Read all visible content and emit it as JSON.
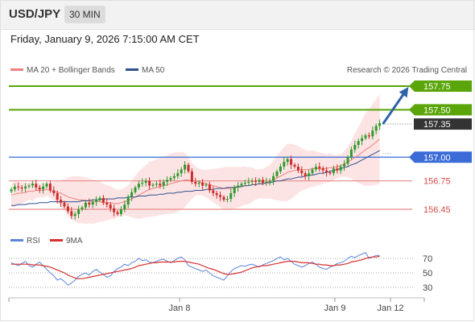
{
  "header": {
    "symbol": "USD/JPY",
    "timeframe": "30 MIN"
  },
  "datetime": "Friday, January 9, 2026 7:15:00 AM CET",
  "legend": {
    "bb_label": "MA 20 + Bollinger Bands",
    "ma50_label": "MA 50",
    "copyright": "Research © 2026 Trading Central"
  },
  "rsi_legend": {
    "rsi_label": "RSI",
    "ma_label": "9MA"
  },
  "colors": {
    "bull": "#2e9a2e",
    "bear": "#cc2b2b",
    "ma20": "#f08080",
    "ma50": "#2c4f8f",
    "band_fill": "#fde4e4",
    "green_level": "#5aa50a",
    "blue_level": "#3a6bd6",
    "red_level": "#e88a8a",
    "arrow": "#2f62a8",
    "rsi": "#5b86d8",
    "rsi_ma": "#d93030"
  },
  "chart_data": {
    "type": "line",
    "title": "USD/JPY",
    "timeframe": "30 MIN",
    "y_range": [
      156.2,
      157.9
    ],
    "x_ticks": [
      "Jan 8",
      "Jan 9",
      "Jan 12"
    ],
    "last_price": 157.35,
    "levels": [
      {
        "value": 157.75,
        "label": "157.75",
        "role": "target",
        "color": "#5aa50a"
      },
      {
        "value": 157.5,
        "label": "157.50",
        "role": "target",
        "color": "#5aa50a"
      },
      {
        "value": 157.35,
        "label": "157.35",
        "role": "last",
        "color": "#333333"
      },
      {
        "value": 157.0,
        "label": "157.00",
        "role": "pivot",
        "color": "#3a6bd6"
      },
      {
        "value": 156.75,
        "label": "156.75",
        "role": "support",
        "color": "#e88a8a"
      },
      {
        "value": 156.45,
        "label": "156.45",
        "role": "support",
        "color": "#e88a8a"
      }
    ],
    "projection": {
      "from": 157.35,
      "to": 157.7
    },
    "price_closes": [
      156.66,
      156.69,
      156.68,
      156.67,
      156.69,
      156.7,
      156.72,
      156.68,
      156.66,
      156.69,
      156.72,
      156.65,
      156.62,
      156.55,
      156.52,
      156.48,
      156.43,
      156.38,
      156.4,
      156.45,
      156.47,
      156.52,
      156.5,
      156.53,
      156.55,
      156.57,
      156.52,
      156.5,
      156.46,
      156.42,
      156.4,
      156.45,
      156.5,
      156.58,
      156.63,
      156.68,
      156.72,
      156.73,
      156.75,
      156.7,
      156.71,
      156.72,
      156.7,
      156.74,
      156.76,
      156.78,
      156.8,
      156.83,
      156.87,
      156.92,
      156.85,
      156.74,
      156.72,
      156.73,
      156.7,
      156.71,
      156.65,
      156.62,
      156.6,
      156.58,
      156.55,
      156.56,
      156.62,
      156.68,
      156.7,
      156.72,
      156.73,
      156.74,
      156.75,
      156.74,
      156.76,
      156.73,
      156.74,
      156.75,
      156.8,
      156.85,
      156.9,
      156.95,
      156.98,
      156.92,
      156.9,
      156.86,
      156.83,
      156.8,
      156.83,
      156.87,
      156.9,
      156.88,
      156.86,
      156.84,
      156.83,
      156.88,
      156.86,
      156.9,
      156.93,
      157.0,
      157.08,
      157.13,
      157.17,
      157.2,
      157.23,
      157.22,
      157.28,
      157.33,
      157.36
    ],
    "ma20": [
      156.6,
      156.61,
      156.62,
      156.62,
      156.63,
      156.64,
      156.64,
      156.65,
      156.65,
      156.65,
      156.66,
      156.65,
      156.64,
      156.63,
      156.62,
      156.6,
      156.58,
      156.57,
      156.56,
      156.55,
      156.55,
      156.54,
      156.54,
      156.53,
      156.53,
      156.53,
      156.52,
      156.52,
      156.52,
      156.51,
      156.51,
      156.52,
      156.53,
      156.54,
      156.56,
      156.58,
      156.6,
      156.62,
      156.64,
      156.66,
      156.67,
      156.68,
      156.69,
      156.7,
      156.71,
      156.72,
      156.73,
      156.74,
      156.75,
      156.76,
      156.76,
      156.75,
      156.75,
      156.74,
      156.73,
      156.72,
      156.71,
      156.7,
      156.69,
      156.68,
      156.67,
      156.67,
      156.67,
      156.68,
      156.68,
      156.69,
      156.7,
      156.7,
      156.71,
      156.71,
      156.72,
      156.72,
      156.73,
      156.74,
      156.76,
      156.78,
      156.8,
      156.82,
      156.84,
      156.85,
      156.86,
      156.87,
      156.87,
      156.87,
      156.87,
      156.88,
      156.88,
      156.88,
      156.88,
      156.88,
      156.89,
      156.89,
      156.9,
      156.91,
      156.93,
      156.95,
      156.97,
      157.0,
      157.02,
      157.05,
      157.08,
      157.1,
      157.13,
      157.16,
      157.19
    ],
    "ma50": [
      156.49,
      156.49,
      156.5,
      156.5,
      156.5,
      156.51,
      156.51,
      156.51,
      156.52,
      156.52,
      156.52,
      156.53,
      156.53,
      156.53,
      156.53,
      156.53,
      156.53,
      156.53,
      156.53,
      156.53,
      156.54,
      156.54,
      156.54,
      156.55,
      156.55,
      156.55,
      156.56,
      156.56,
      156.56,
      156.56,
      156.57,
      156.57,
      156.57,
      156.58,
      156.58,
      156.58,
      156.59,
      156.59,
      156.59,
      156.6,
      156.6,
      156.6,
      156.61,
      156.61,
      156.62,
      156.62,
      156.62,
      156.63,
      156.63,
      156.64,
      156.64,
      156.64,
      156.65,
      156.65,
      156.65,
      156.66,
      156.66,
      156.66,
      156.67,
      156.67,
      156.67,
      156.68,
      156.68,
      156.68,
      156.69,
      156.69,
      156.7,
      156.7,
      156.71,
      156.71,
      156.72,
      156.72,
      156.73,
      156.73,
      156.74,
      156.75,
      156.75,
      156.76,
      156.77,
      156.77,
      156.78,
      156.79,
      156.79,
      156.8,
      156.81,
      156.81,
      156.82,
      156.83,
      156.83,
      156.84,
      156.85,
      156.86,
      156.87,
      156.88,
      156.89,
      156.9,
      156.92,
      156.93,
      156.95,
      156.97,
      156.99,
      157.01,
      157.03,
      157.05,
      157.07
    ],
    "rsi": {
      "levels": [
        70,
        50,
        30
      ],
      "rsi": [
        64,
        62,
        60,
        63,
        66,
        60,
        58,
        62,
        65,
        60,
        55,
        50,
        46,
        40,
        42,
        38,
        33,
        36,
        40,
        45,
        48,
        50,
        47,
        52,
        55,
        51,
        48,
        44,
        46,
        52,
        56,
        58,
        62,
        60,
        64,
        66,
        70,
        67,
        68,
        65,
        64,
        66,
        68,
        69,
        66,
        64,
        67,
        70,
        72,
        68,
        60,
        58,
        56,
        54,
        52,
        54,
        50,
        46,
        44,
        42,
        40,
        46,
        52,
        56,
        58,
        60,
        59,
        61,
        62,
        60,
        58,
        61,
        63,
        65,
        67,
        70,
        72,
        68,
        70,
        66,
        62,
        60,
        58,
        60,
        63,
        65,
        62,
        58,
        56,
        55,
        58,
        60,
        63,
        64,
        66,
        70,
        73,
        71,
        74,
        76,
        78,
        70,
        72,
        74,
        74
      ],
      "ma9": [
        62,
        62,
        62,
        62,
        62,
        62,
        61,
        61,
        61,
        60,
        59,
        58,
        56,
        54,
        52,
        50,
        47,
        45,
        43,
        42,
        42,
        43,
        44,
        45,
        46,
        47,
        48,
        49,
        50,
        51,
        52,
        53,
        54,
        55,
        56,
        58,
        60,
        61,
        62,
        63,
        64,
        64,
        65,
        65,
        65,
        65,
        65,
        66,
        66,
        66,
        65,
        64,
        63,
        62,
        60,
        58,
        56,
        55,
        53,
        51,
        49,
        48,
        48,
        49,
        50,
        51,
        53,
        55,
        57,
        58,
        59,
        60,
        60,
        61,
        62,
        63,
        64,
        65,
        66,
        66,
        66,
        65,
        64,
        64,
        64,
        63,
        62,
        62,
        61,
        61,
        60,
        60,
        61,
        61,
        62,
        63,
        65,
        66,
        67,
        68,
        70,
        71,
        72,
        72,
        73
      ]
    }
  }
}
